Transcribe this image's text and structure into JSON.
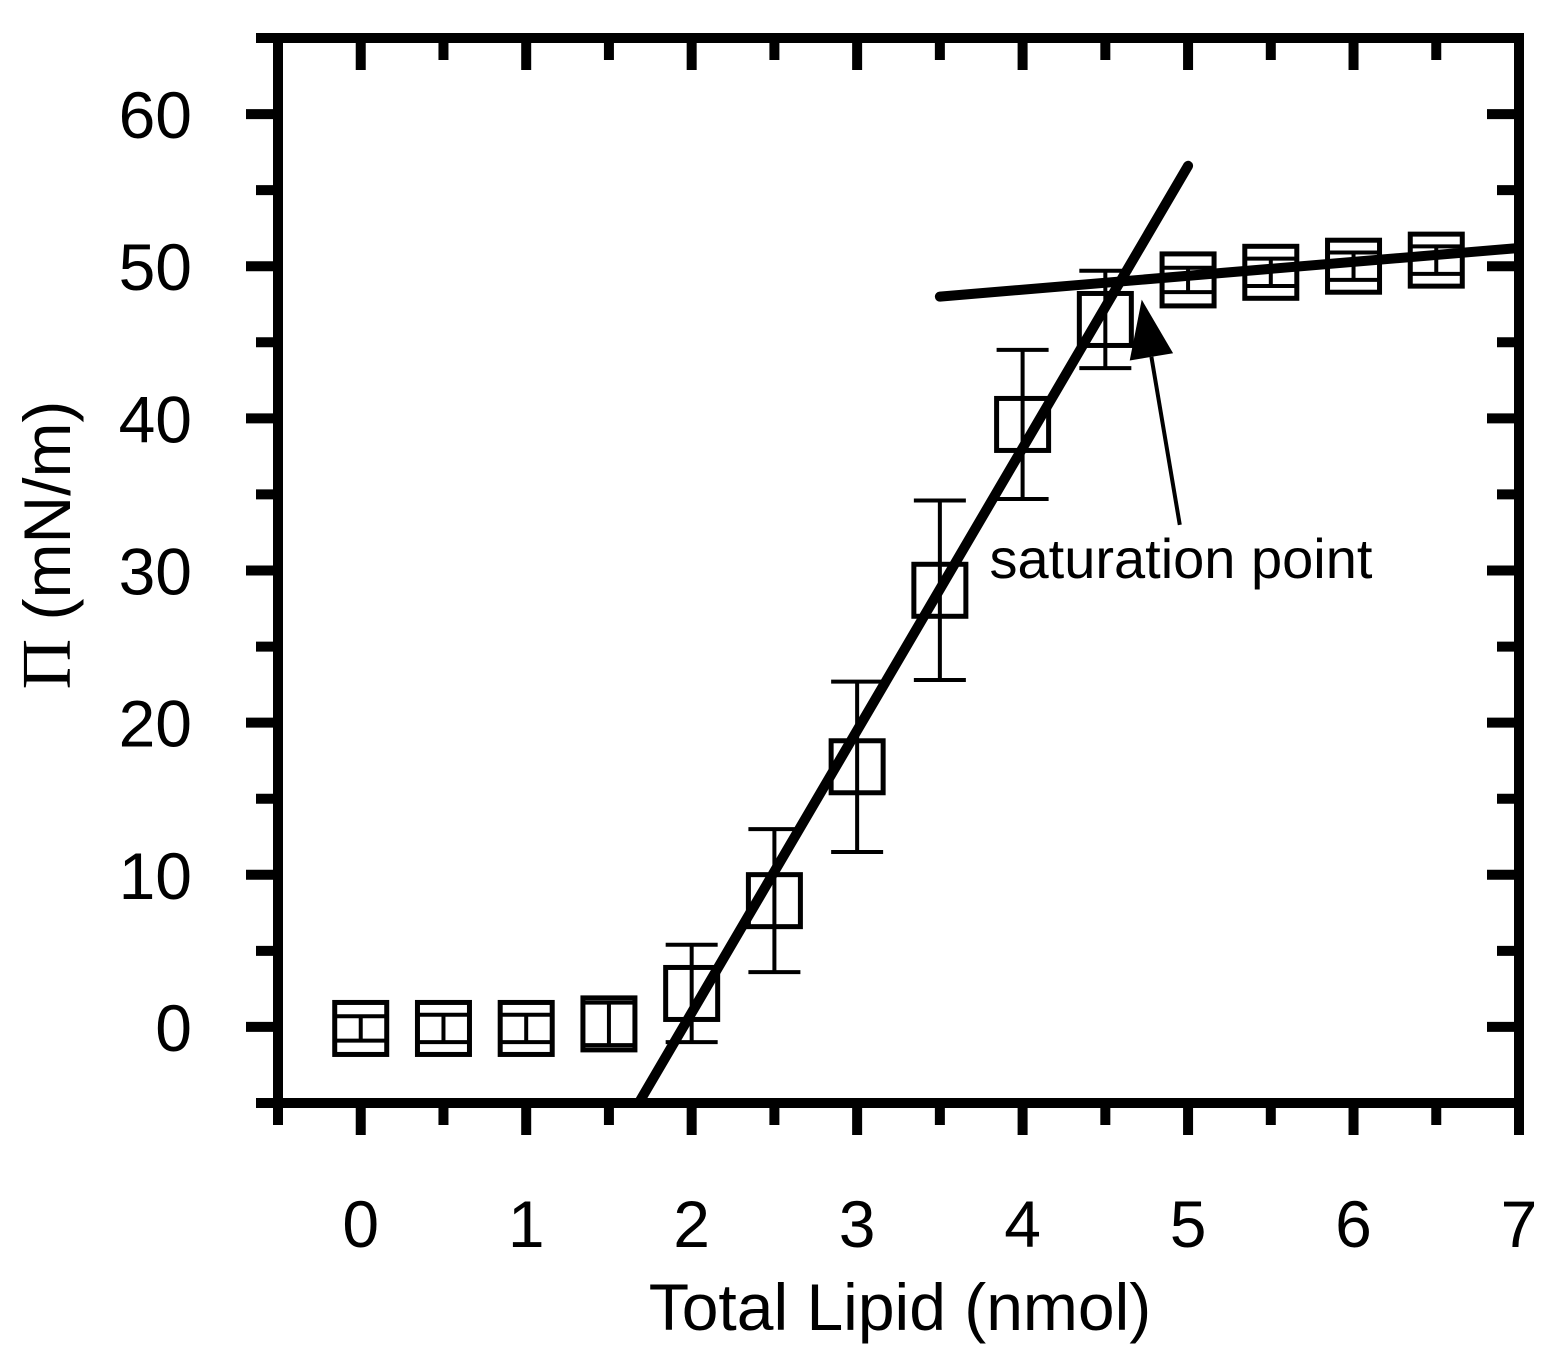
{
  "chart_data": {
    "type": "scatter",
    "xlabel": "Total Lipid (nmol)",
    "ylabel_symbol": "Π",
    "ylabel_rest": " (mN/m)",
    "xlim": [
      -0.5,
      7
    ],
    "ylim": [
      -5,
      65
    ],
    "x_ticks": [
      0,
      1,
      2,
      3,
      4,
      5,
      6,
      7
    ],
    "x_minor_ticks": [
      -0.5,
      0.5,
      1.5,
      2.5,
      3.5,
      4.5,
      5.5,
      6.5
    ],
    "y_ticks": [
      0,
      10,
      20,
      30,
      40,
      50,
      60
    ],
    "y_minor_ticks": [
      -5,
      5,
      15,
      25,
      35,
      45,
      55,
      65
    ],
    "grid": false,
    "points": [
      {
        "x": 0.0,
        "y": -0.1,
        "err": 0.8
      },
      {
        "x": 0.5,
        "y": -0.1,
        "err": 0.9
      },
      {
        "x": 1.0,
        "y": -0.1,
        "err": 0.9
      },
      {
        "x": 1.5,
        "y": 0.2,
        "err": 1.4
      },
      {
        "x": 2.0,
        "y": 2.2,
        "err": 3.2
      },
      {
        "x": 2.5,
        "y": 8.3,
        "err": 4.7
      },
      {
        "x": 3.0,
        "y": 17.1,
        "err": 5.6
      },
      {
        "x": 3.5,
        "y": 28.7,
        "err": 5.9
      },
      {
        "x": 4.0,
        "y": 39.6,
        "err": 4.9
      },
      {
        "x": 4.5,
        "y": 46.5,
        "err": 3.2
      },
      {
        "x": 5.0,
        "y": 49.1,
        "err": 0.8
      },
      {
        "x": 5.5,
        "y": 49.6,
        "err": 0.9
      },
      {
        "x": 6.0,
        "y": 50.0,
        "err": 0.9
      },
      {
        "x": 6.5,
        "y": 50.4,
        "err": 0.9
      }
    ],
    "fit_lines": [
      {
        "x1": 1.68,
        "y1": -5.0,
        "x2": 5.0,
        "y2": 56.6
      },
      {
        "x1": 3.5,
        "y1": 48.0,
        "x2": 7.0,
        "y2": 51.2
      }
    ],
    "annotation": {
      "text": "saturation point",
      "text_x": 3.8,
      "text_y": 29.5,
      "arrow_tail_x": 4.95,
      "arrow_tail_y": 33.0,
      "arrow_head_x": 4.72,
      "arrow_head_y": 47.8
    }
  }
}
